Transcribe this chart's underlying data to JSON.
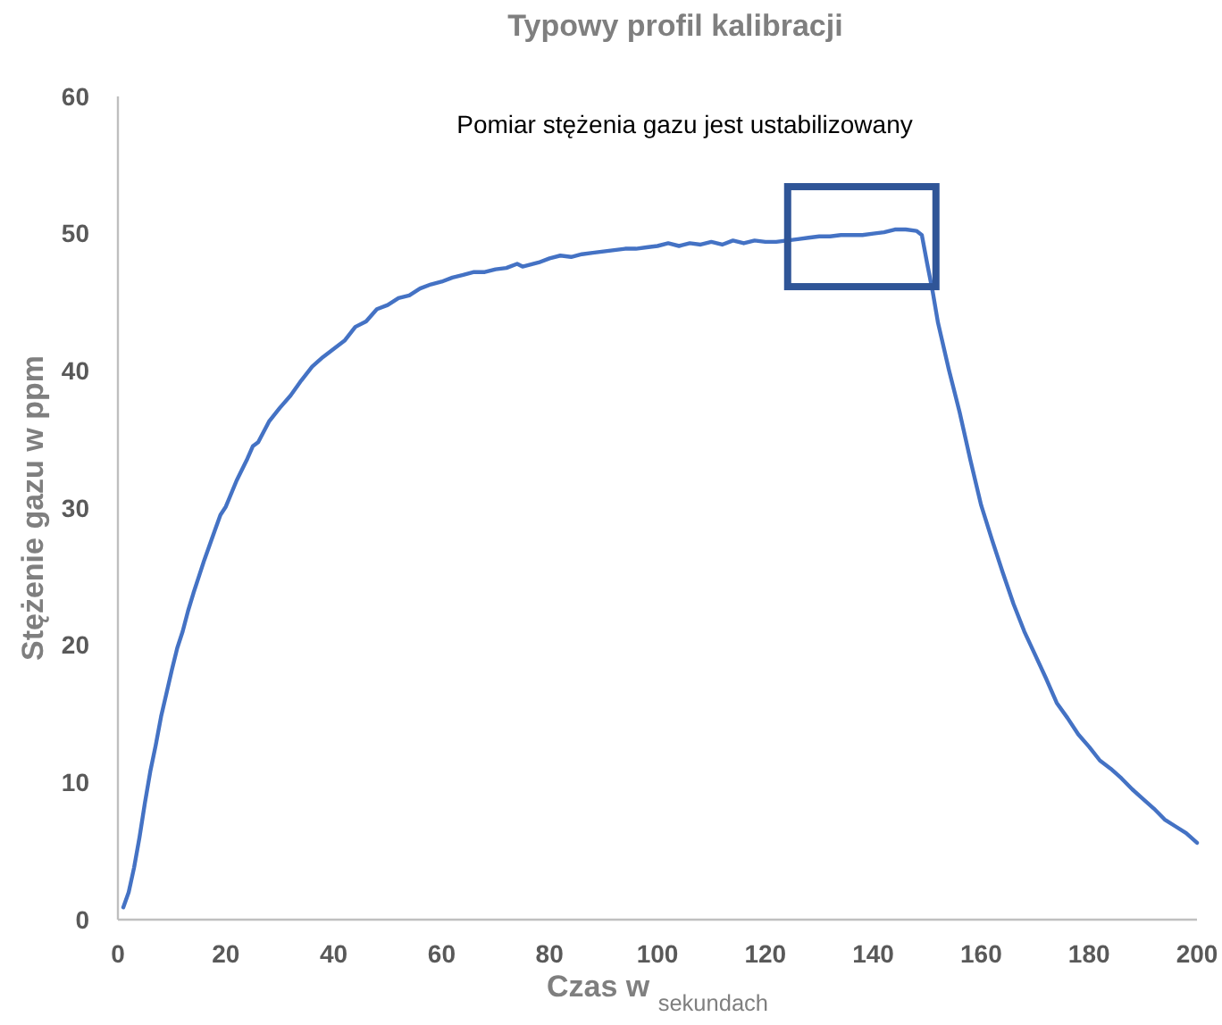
{
  "chart_data": {
    "type": "line",
    "title": "Typowy profil kalibracji",
    "xlabel": "Czas w $_{sekundach}$",
    "ylabel": "Stężenie gazu w ppm",
    "xlim": [
      0,
      200
    ],
    "xticks": [
      0,
      20,
      40,
      60,
      80,
      100,
      120,
      140,
      160,
      180,
      200
    ],
    "ylim": [
      0,
      60
    ],
    "yticks": [
      0,
      10,
      20,
      30,
      40,
      50,
      60
    ],
    "grid": false,
    "annotations": [
      "Pomiar stężenia gazu jest ustabilizowany"
    ],
    "series": [
      {
        "color": "#4472c4",
        "x": [
          1,
          2,
          3,
          4,
          5,
          6,
          7,
          8,
          9,
          10,
          11,
          12,
          13,
          14,
          15,
          16,
          17,
          18,
          19,
          20,
          22,
          24,
          25,
          26,
          28,
          30,
          32,
          34,
          36,
          38,
          40,
          42,
          44,
          46,
          48,
          50,
          52,
          54,
          56,
          58,
          60,
          62,
          64,
          66,
          68,
          70,
          72,
          74,
          75,
          78,
          80,
          82,
          84,
          86,
          88,
          90,
          92,
          94,
          96,
          98,
          100,
          102,
          104,
          106,
          108,
          110,
          112,
          114,
          116,
          118,
          120,
          122,
          124,
          126,
          128,
          130,
          132,
          134,
          136,
          138,
          140,
          142,
          144,
          146,
          148,
          149,
          150,
          151,
          152,
          154,
          156,
          158,
          160,
          162,
          164,
          166,
          168,
          170,
          172,
          174,
          176,
          178,
          180,
          182,
          184,
          186,
          188,
          190,
          192,
          194,
          196,
          198,
          200
        ],
        "values": [
          0.9,
          2,
          3.8,
          6,
          8.5,
          10.8,
          12.7,
          14.8,
          16.5,
          18.2,
          19.8,
          21,
          22.5,
          23.8,
          25,
          26.2,
          27.3,
          28.4,
          29.5,
          30.1,
          32,
          33.6,
          34.5,
          34.8,
          36.3,
          37.3,
          38.2,
          39.3,
          40.3,
          41,
          41.6,
          42.2,
          43.2,
          43.6,
          44.5,
          44.8,
          45.3,
          45.5,
          46,
          46.3,
          46.5,
          46.8,
          47,
          47.2,
          47.2,
          47.4,
          47.5,
          47.8,
          47.6,
          47.9,
          48.2,
          48.4,
          48.3,
          48.5,
          48.6,
          48.7,
          48.8,
          48.9,
          48.9,
          49,
          49.1,
          49.3,
          49.1,
          49.3,
          49.2,
          49.4,
          49.2,
          49.5,
          49.3,
          49.5,
          49.4,
          49.4,
          49.5,
          49.6,
          49.7,
          49.8,
          49.8,
          49.9,
          49.9,
          49.9,
          50,
          50.1,
          50.3,
          50.3,
          50.2,
          49.9,
          47.8,
          45.8,
          43.5,
          40.1,
          37,
          33.5,
          30.2,
          27.7,
          25.3,
          23,
          21,
          19.3,
          17.6,
          15.8,
          14.7,
          13.5,
          12.6,
          11.6,
          11,
          10.3,
          9.5,
          8.8,
          8.1,
          7.3,
          6.8,
          6.3,
          5.6
        ]
      }
    ]
  }
}
